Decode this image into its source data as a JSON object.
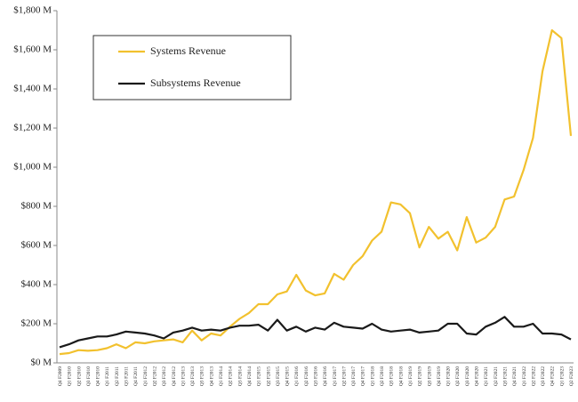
{
  "chart_data": {
    "type": "line",
    "categories": [
      "Q4 F2009",
      "Q1 F2010",
      "Q2 F2010",
      "Q3 F2010",
      "Q4 F2010",
      "Q1 F2011",
      "Q2 F2011",
      "Q3 F2011",
      "Q4 F2011",
      "Q1 F2012",
      "Q2 F2012",
      "Q3 F2012",
      "Q4 F2012",
      "Q1 F2013",
      "Q2 F2013",
      "Q3 F2013",
      "Q4 F2013",
      "Q1 F2014",
      "Q2 F2014",
      "Q3 F2014",
      "Q4 F2014",
      "Q1 F2015",
      "Q2 F2015",
      "Q3 F2015",
      "Q4 F2015",
      "Q1 F2016",
      "Q2 F2016",
      "Q3 F2016",
      "Q4 F2016",
      "Q1 F2017",
      "Q2 F2017",
      "Q3 F2017",
      "Q4 F2017",
      "Q1 F2018",
      "Q2 F2018",
      "Q3 F2018",
      "Q4 F2018",
      "Q1 F2019",
      "Q2 F2019",
      "Q3 F2019",
      "Q4 F2019",
      "Q1 F2020",
      "Q2 F2020",
      "Q3 F2020",
      "Q4 F2020",
      "Q1 F2021",
      "Q2 F2021",
      "Q3 F2021",
      "Q4 F2021",
      "Q1 F2022",
      "Q2 F2022",
      "Q3 F2022",
      "Q4 F2022",
      "Q1 F2023",
      "Q2 F2023"
    ],
    "series": [
      {
        "name": "Systems Revenue",
        "color": "#f2c12e",
        "values": [
          45,
          50,
          65,
          62,
          65,
          75,
          95,
          75,
          105,
          100,
          110,
          115,
          120,
          105,
          165,
          115,
          150,
          140,
          185,
          225,
          255,
          300,
          300,
          350,
          365,
          450,
          370,
          345,
          355,
          455,
          425,
          500,
          545,
          625,
          670,
          820,
          810,
          765,
          590,
          695,
          635,
          670,
          575,
          745,
          615,
          640,
          695,
          835,
          850,
          985,
          1150,
          1490,
          1700,
          1660,
          1160
        ]
      },
      {
        "name": "Subsystems Revenue",
        "color": "#1a1a1a",
        "values": [
          80,
          95,
          115,
          125,
          135,
          135,
          145,
          160,
          155,
          150,
          140,
          125,
          155,
          165,
          180,
          165,
          170,
          165,
          180,
          190,
          190,
          195,
          165,
          220,
          165,
          185,
          160,
          180,
          170,
          205,
          185,
          180,
          175,
          200,
          170,
          160,
          165,
          170,
          155,
          160,
          165,
          200,
          200,
          150,
          145,
          185,
          205,
          235,
          185,
          185,
          200,
          150,
          150,
          145,
          120
        ]
      }
    ],
    "ylim": [
      0,
      1800
    ],
    "yticks": [
      {
        "value": 0,
        "label": "$0 M"
      },
      {
        "value": 200,
        "label": "$200 M"
      },
      {
        "value": 400,
        "label": "$400 M"
      },
      {
        "value": 600,
        "label": "$600 M"
      },
      {
        "value": 800,
        "label": "$800 M"
      },
      {
        "value": 1000,
        "label": "$1,000 M"
      },
      {
        "value": 1200,
        "label": "$1,200 M"
      },
      {
        "value": 1400,
        "label": "$1,400 M"
      },
      {
        "value": 1600,
        "label": "$1,600 M"
      },
      {
        "value": 1800,
        "label": "$1,800 M"
      }
    ],
    "legend": "upper left"
  }
}
